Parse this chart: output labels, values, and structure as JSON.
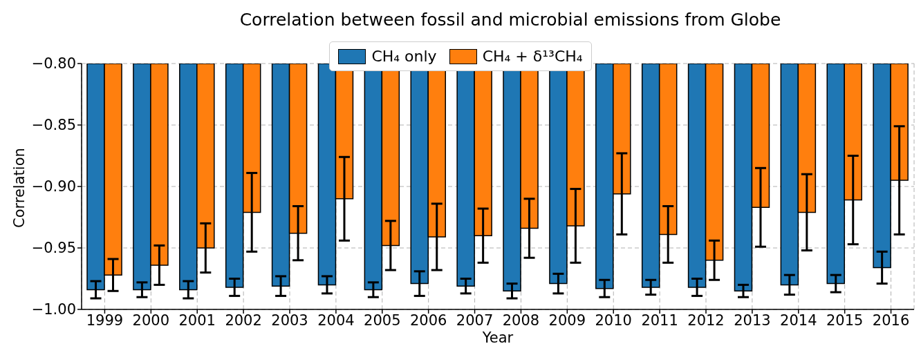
{
  "chart_data": {
    "type": "bar",
    "title": "Correlation between fossil and microbial emissions from Globe",
    "xlabel": "Year",
    "ylabel": "Correlation",
    "categories": [
      "1999",
      "2000",
      "2001",
      "2002",
      "2003",
      "2004",
      "2005",
      "2006",
      "2007",
      "2008",
      "2009",
      "2010",
      "2011",
      "2012",
      "2013",
      "2014",
      "2015",
      "2016"
    ],
    "series": [
      {
        "name": "CH₄ only",
        "color": "#1f77b4",
        "values": [
          -0.984,
          -0.984,
          -0.984,
          -0.982,
          -0.981,
          -0.98,
          -0.984,
          -0.979,
          -0.981,
          -0.985,
          -0.979,
          -0.983,
          -0.982,
          -0.982,
          -0.985,
          -0.98,
          -0.979,
          -0.966
        ],
        "errors": [
          0.007,
          0.006,
          0.007,
          0.007,
          0.008,
          0.007,
          0.006,
          0.01,
          0.006,
          0.006,
          0.008,
          0.007,
          0.006,
          0.007,
          0.005,
          0.008,
          0.007,
          0.013
        ]
      },
      {
        "name": "CH₄ + δ¹³CH₄",
        "color": "#ff7f0e",
        "values": [
          -0.972,
          -0.964,
          -0.95,
          -0.921,
          -0.938,
          -0.91,
          -0.948,
          -0.941,
          -0.94,
          -0.934,
          -0.932,
          -0.906,
          -0.939,
          -0.96,
          -0.917,
          -0.921,
          -0.911,
          -0.895
        ],
        "errors": [
          0.013,
          0.016,
          0.02,
          0.032,
          0.022,
          0.034,
          0.02,
          0.027,
          0.022,
          0.024,
          0.03,
          0.033,
          0.023,
          0.016,
          0.032,
          0.031,
          0.036,
          0.044
        ]
      }
    ],
    "ylim": [
      -1.0,
      -0.8
    ],
    "yticks": [
      {
        "value": -1.0,
        "label": "−1.00"
      },
      {
        "value": -0.95,
        "label": "−0.95"
      },
      {
        "value": -0.9,
        "label": "−0.90"
      },
      {
        "value": -0.85,
        "label": "−0.85"
      },
      {
        "value": -0.8,
        "label": "−0.80"
      }
    ],
    "grid": true,
    "legend": "top"
  }
}
